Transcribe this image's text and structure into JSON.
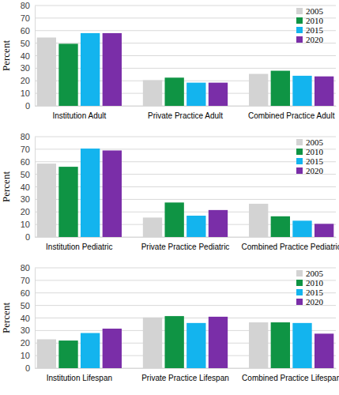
{
  "chart_data": [
    {
      "type": "bar",
      "y_label": "Percent",
      "categories": [
        "Institution Adult",
        "Private Practice Adult",
        "Combined Practice Adult"
      ],
      "series": [
        {
          "name": "2005",
          "color": "#d3d3d3",
          "values": [
            54.5,
            20.5,
            25.5
          ]
        },
        {
          "name": "2010",
          "color": "#0f9444",
          "values": [
            49.5,
            22.5,
            28
          ]
        },
        {
          "name": "2015",
          "color": "#13b4ee",
          "values": [
            58,
            18.5,
            24
          ]
        },
        {
          "name": "2020",
          "color": "#7a2ea8",
          "values": [
            58,
            18.5,
            23.5
          ]
        }
      ],
      "ylim": [
        0,
        80
      ],
      "yticks": [
        0,
        10,
        20,
        30,
        40,
        50,
        60,
        70,
        80
      ],
      "grid": true,
      "legend": "top-right"
    },
    {
      "type": "bar",
      "y_label": "Percent",
      "categories": [
        "Institution Pediatric",
        "Private Practice Pediatric",
        "Combined Practice Pediatric"
      ],
      "series": [
        {
          "name": "2005",
          "color": "#d3d3d3",
          "values": [
            58.5,
            15.5,
            26.5
          ]
        },
        {
          "name": "2010",
          "color": "#0f9444",
          "values": [
            56,
            27.5,
            16.5
          ]
        },
        {
          "name": "2015",
          "color": "#13b4ee",
          "values": [
            70.5,
            17,
            13
          ]
        },
        {
          "name": "2020",
          "color": "#7a2ea8",
          "values": [
            69,
            21.5,
            10.5
          ]
        }
      ],
      "ylim": [
        0,
        80
      ],
      "yticks": [
        0,
        10,
        20,
        30,
        40,
        50,
        60,
        70,
        80
      ],
      "grid": true,
      "legend": "top-right"
    },
    {
      "type": "bar",
      "y_label": "Percent",
      "categories": [
        "Institution Lifespan",
        "Private Practice Lifespan",
        "Combined Practice Lifespan"
      ],
      "series": [
        {
          "name": "2005",
          "color": "#d3d3d3",
          "values": [
            23,
            40.5,
            36.5
          ]
        },
        {
          "name": "2010",
          "color": "#0f9444",
          "values": [
            22,
            41.5,
            36.5
          ]
        },
        {
          "name": "2015",
          "color": "#13b4ee",
          "values": [
            28,
            36,
            36
          ]
        },
        {
          "name": "2020",
          "color": "#7a2ea8",
          "values": [
            31.5,
            41,
            27.5
          ]
        }
      ],
      "ylim": [
        0,
        80
      ],
      "yticks": [
        0,
        10,
        20,
        30,
        40,
        50,
        60,
        70,
        80
      ],
      "grid": true,
      "legend": "top-right"
    }
  ]
}
